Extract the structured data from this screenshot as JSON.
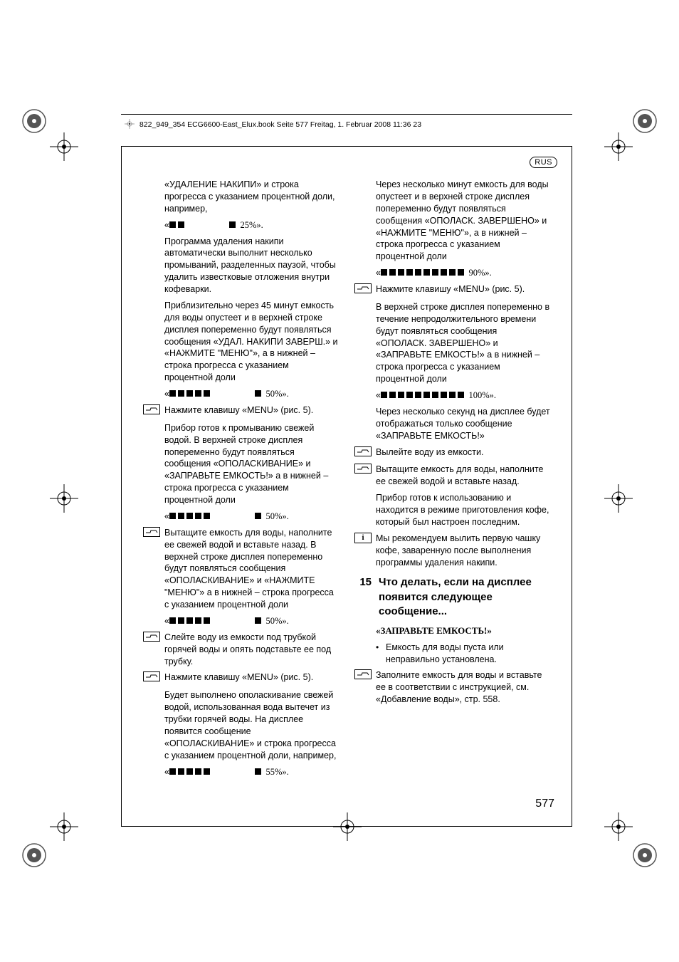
{
  "header": "822_949_354 ECG6600-East_Elux.book  Seite 577  Freitag, 1. Februar 2008  11:36 23",
  "lang_badge": "RUS",
  "page_number": "577",
  "left_col": {
    "p1": "«УДАЛЕНИЕ НАКИПИ» и строка прогресса с указанием процентной доли, например,",
    "prog1": {
      "filled": 2,
      "trail": 1,
      "pct": "25%»."
    },
    "p2": "Программа удаления накипи автоматически выполнит несколько промываний, разделенных паузой, чтобы удалить известковые отложения внутри кофеварки.",
    "p3": "Приблизительно через 45 минут емкость для воды опустеет и в верхней строке дисплея попеременно будут появляться сообщения «УДАЛ. НАКИПИ ЗАВЕРШ.» и «НАЖМИТЕ \"МЕНЮ\"», а в нижней – строка прогресса с указанием процентной доли",
    "prog2": {
      "filled": 5,
      "trail": 1,
      "pct": "50%»."
    },
    "s1": "Нажмите клавишу «MENU» (рис. 5).",
    "p4": "Прибор готов к промыванию свежей водой. В верхней строке дисплея попеременно будут появляться сообщения «ОПОЛАСКИВАНИЕ» и «ЗАПРАВЬТЕ ЕМКОСТЬ!» а в нижней – строка прогресса с указанием процентной доли",
    "prog3": {
      "filled": 5,
      "trail": 1,
      "pct": "50%»."
    },
    "s2": "Вытащите емкость для воды, наполните ее свежей водой и вставьте назад. В верхней строке дисплея попеременно будут появляться сообщения «ОПОЛАСКИВАНИЕ» и «НАЖМИТЕ \"МЕНЮ\"» а в нижней – строка прогресса с указанием процентной доли",
    "prog4": {
      "filled": 5,
      "trail": 1,
      "pct": "50%»."
    },
    "s3": "Слейте воду из емкости под трубкой горячей воды и опять подставьте ее под трубку.",
    "s4": "Нажмите клавишу «MENU» (рис. 5).",
    "p5": "Будет выполнено ополаскивание свежей водой, использованная вода вытечет из трубки горячей воды. На дисплее появится сообщение «ОПОЛАСКИВАНИЕ» и строка прогресса с указанием процентной доли, например,",
    "prog5": {
      "filled": 5,
      "trail": 1,
      "pct": "55%»."
    }
  },
  "right_col": {
    "p1": "Через несколько минут емкость для воды опустеет и в верхней строке дисплея попеременно будут появляться сообщения «ОПОЛАСК. ЗАВЕРШЕНО» и «НАЖМИТЕ \"МЕНЮ\"», а в нижней – строка прогресса с указанием процентной доли",
    "prog1": {
      "filled": 10,
      "trail": 0,
      "pct": "90%»."
    },
    "s1": "Нажмите клавишу «MENU» (рис. 5).",
    "p2": "В верхней строке дисплея попеременно в течение непродолжительного времени будут появляться сообщения «ОПОЛАСК. ЗАВЕРШЕНО» и «ЗАПРАВЬТЕ ЕМКОСТЬ!» а в нижней – строка прогресса с указанием процентной доли",
    "prog2": {
      "filled": 10,
      "trail": 0,
      "pct": "100%»."
    },
    "p3": "Через несколько секунд на дисплее будет отображаться только сообщение «ЗАПРАВЬТЕ ЕМКОСТЬ!»",
    "s2": "Вылейте воду из емкости.",
    "s3": "Вытащите емкость для воды, наполните ее свежей водой и вставьте назад.",
    "p4": "Прибор готов к использованию и находится в режиме приготовления кофе, который был настроен последним.",
    "info": "Мы рекомендуем вылить первую чашку кофе, заваренную после выполнения программы удаления накипи.",
    "sec_num": "15",
    "sec_title": "Что делать, если на дисплее появится следующее сообщение...",
    "sub_head": "«ЗАПРАВЬТЕ ЕМКОСТЬ!»",
    "b1": "Емкость для воды пуста или неправильно установлена.",
    "s4": "Заполните емкость для воды и вставьте ее в соответствии с инструкцией, см. «Добавление воды», стр. 558."
  }
}
